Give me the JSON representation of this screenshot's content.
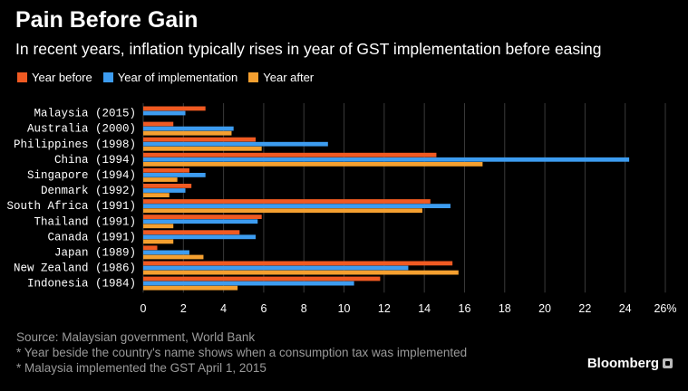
{
  "header": {
    "title": "Pain Before Gain",
    "subtitle": "In recent years, inflation typically rises in year of GST implementation before easing"
  },
  "colors": {
    "year_before": "#f05a22",
    "year_of": "#3d9cf0",
    "year_after": "#f5a030",
    "gridline": "#3a3a3a"
  },
  "chart_data": {
    "type": "bar",
    "orientation": "horizontal",
    "title": "Pain Before Gain",
    "subtitle": "In recent years, inflation typically rises in year of GST implementation before easing",
    "categories": [
      "Malaysia (2015)",
      "Australia (2000)",
      "Philippines (1998)",
      "China (1994)",
      "Singapore (1994)",
      "Denmark (1992)",
      "South Africa (1991)",
      "Thailand (1991)",
      "Canada (1991)",
      "Japan (1989)",
      "New Zealand (1986)",
      "Indonesia (1984)"
    ],
    "series": [
      {
        "name": "Year before",
        "color": "#f05a22",
        "values": [
          3.1,
          1.5,
          5.6,
          14.6,
          2.3,
          2.4,
          14.3,
          5.9,
          4.8,
          0.7,
          15.4,
          11.8
        ]
      },
      {
        "name": "Year of implementation",
        "color": "#3d9cf0",
        "values": [
          2.1,
          4.5,
          9.2,
          24.2,
          3.1,
          2.1,
          15.3,
          5.7,
          5.6,
          2.3,
          13.2,
          10.5
        ]
      },
      {
        "name": "Year after",
        "color": "#f5a030",
        "values": [
          null,
          4.4,
          5.9,
          16.9,
          1.7,
          1.3,
          13.9,
          1.5,
          1.5,
          3.0,
          15.7,
          4.7
        ]
      }
    ],
    "xlim": [
      0,
      26
    ],
    "xticks": [
      "0",
      "2",
      "4",
      "6",
      "8",
      "10",
      "12",
      "14",
      "16",
      "18",
      "20",
      "22",
      "24",
      "26%"
    ],
    "grid": true,
    "legend_position": "top-left"
  },
  "footer": {
    "source": "Source: Malaysian government, World Bank",
    "note1": "* Year beside the country's name shows when a consumption tax was implemented",
    "note2": "* Malaysia implemented the GST April 1, 2015"
  },
  "brand": {
    "name": "Bloomberg"
  }
}
